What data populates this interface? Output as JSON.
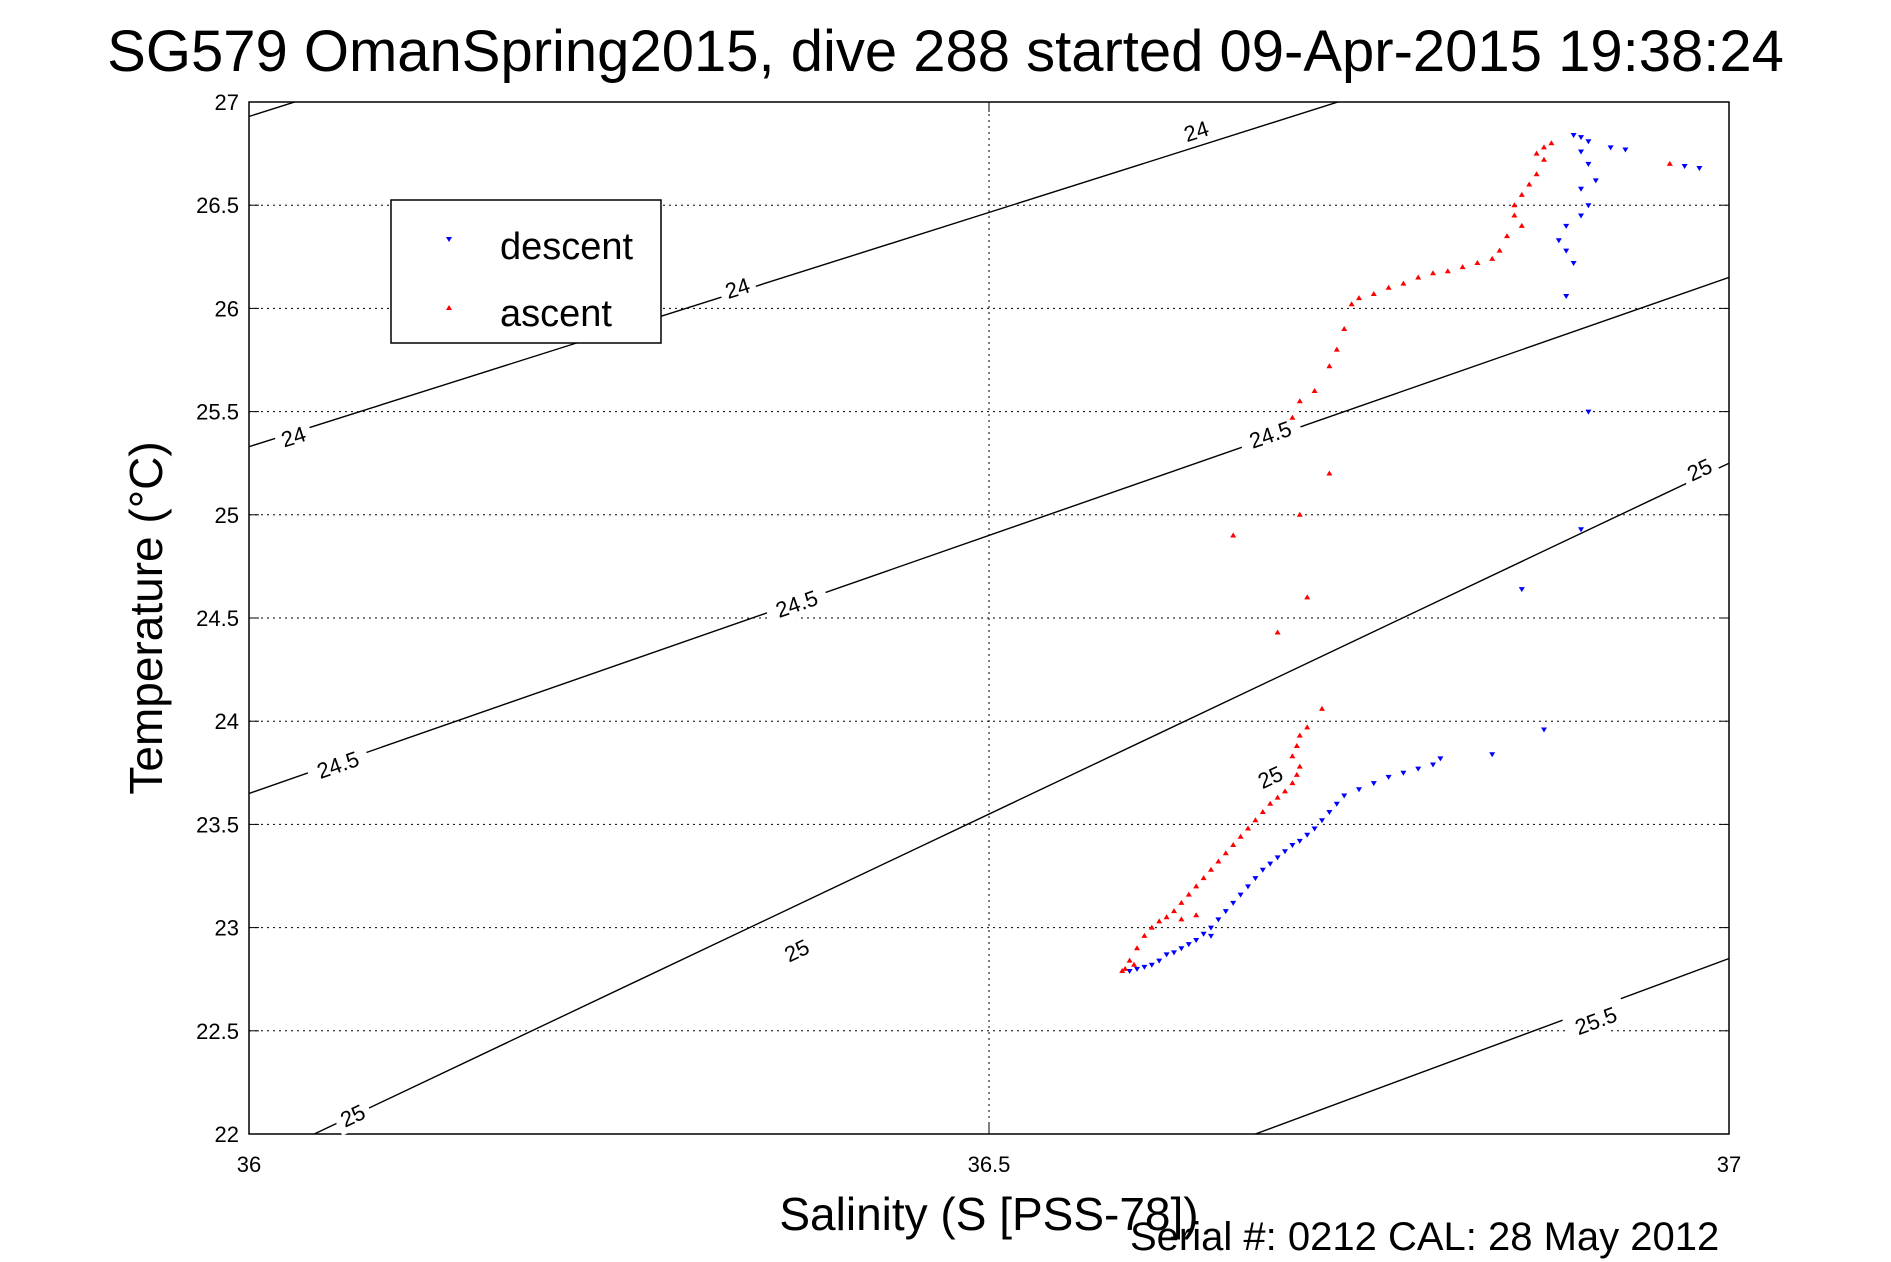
{
  "chart_data": {
    "type": "scatter",
    "title": "SG579 OmanSpring2015, dive 288 started 09-Apr-2015 19:38:24",
    "xlabel": "Salinity (S [PSS-78])",
    "ylabel": "Temperature (°C)",
    "xlim": [
      36,
      37
    ],
    "ylim": [
      22,
      27
    ],
    "x_ticks": [
      "36",
      "36.5",
      "37"
    ],
    "x_tick_values": [
      36,
      36.5,
      37
    ],
    "y_ticks": [
      "22",
      "22.5",
      "23",
      "23.5",
      "24",
      "24.5",
      "25",
      "25.5",
      "26",
      "26.5",
      "27"
    ],
    "y_tick_values": [
      22,
      22.5,
      23,
      23.5,
      24,
      24.5,
      25,
      25.5,
      26,
      26.5,
      27
    ],
    "grid": true,
    "legend_position": "upper-left",
    "footer": "Serial #: 0212  CAL: 28 May 2012",
    "contours": [
      {
        "level": 24,
        "points": [
          [
            36,
            26.93
          ],
          [
            37,
            29.2
          ]
        ],
        "labels": [
          {
            "text": "24",
            "x": 36.03,
            "y": 25.38
          },
          {
            "text": "24",
            "x": 36.33,
            "y": 26.1
          },
          {
            "text": "24",
            "x": 36.64,
            "y": 26.86
          }
        ]
      },
      {
        "level": 24,
        "points": [
          [
            36,
            25.33
          ],
          [
            37,
            27.6
          ]
        ],
        "labels": []
      },
      {
        "level": 24.5,
        "points": [
          [
            36,
            23.65
          ],
          [
            37,
            26.15
          ]
        ],
        "labels": [
          {
            "text": "24.5",
            "x": 36.06,
            "y": 23.79
          },
          {
            "text": "24.5",
            "x": 36.37,
            "y": 24.57
          },
          {
            "text": "24.5",
            "x": 36.69,
            "y": 25.39
          }
        ]
      },
      {
        "level": 25,
        "points": [
          [
            36,
            21.85
          ],
          [
            37,
            25.25
          ]
        ],
        "labels": [
          {
            "text": "25",
            "x": 36.07,
            "y": 22.09
          },
          {
            "text": "25",
            "x": 36.37,
            "y": 22.89
          },
          {
            "text": "25",
            "x": 36.69,
            "y": 23.73
          },
          {
            "text": "25",
            "x": 36.98,
            "y": 25.22
          }
        ]
      },
      {
        "level": 25.5,
        "points": [
          [
            36.68,
            22.0
          ],
          [
            37,
            22.85
          ]
        ],
        "labels": [
          {
            "text": "25.5",
            "x": 36.91,
            "y": 22.55
          }
        ]
      }
    ],
    "series": [
      {
        "name": "descent",
        "color": "#0000ff",
        "marker": "down-triangle",
        "points": [
          [
            36.92,
            26.78
          ],
          [
            36.93,
            26.77
          ],
          [
            36.97,
            26.69
          ],
          [
            36.98,
            26.68
          ],
          [
            36.895,
            26.84
          ],
          [
            36.9,
            26.83
          ],
          [
            36.905,
            26.81
          ],
          [
            36.9,
            26.76
          ],
          [
            36.905,
            26.7
          ],
          [
            36.9,
            26.58
          ],
          [
            36.91,
            26.62
          ],
          [
            36.905,
            26.5
          ],
          [
            36.9,
            26.45
          ],
          [
            36.89,
            26.4
          ],
          [
            36.885,
            26.33
          ],
          [
            36.89,
            26.28
          ],
          [
            36.895,
            26.22
          ],
          [
            36.89,
            26.06
          ],
          [
            36.905,
            25.5
          ],
          [
            36.9,
            24.93
          ],
          [
            36.875,
            23.96
          ],
          [
            36.86,
            24.64
          ],
          [
            36.84,
            23.84
          ],
          [
            36.805,
            23.82
          ],
          [
            36.8,
            23.79
          ],
          [
            36.79,
            23.77
          ],
          [
            36.78,
            23.75
          ],
          [
            36.77,
            23.73
          ],
          [
            36.76,
            23.7
          ],
          [
            36.75,
            23.67
          ],
          [
            36.74,
            23.64
          ],
          [
            36.735,
            23.6
          ],
          [
            36.73,
            23.56
          ],
          [
            36.725,
            23.52
          ],
          [
            36.72,
            23.48
          ],
          [
            36.715,
            23.45
          ],
          [
            36.71,
            23.42
          ],
          [
            36.705,
            23.4
          ],
          [
            36.7,
            23.37
          ],
          [
            36.695,
            23.34
          ],
          [
            36.69,
            23.31
          ],
          [
            36.685,
            23.28
          ],
          [
            36.68,
            23.24
          ],
          [
            36.675,
            23.2
          ],
          [
            36.67,
            23.16
          ],
          [
            36.665,
            23.12
          ],
          [
            36.66,
            23.08
          ],
          [
            36.655,
            23.04
          ],
          [
            36.65,
            23.0
          ],
          [
            36.645,
            22.97
          ],
          [
            36.64,
            22.94
          ],
          [
            36.635,
            22.92
          ],
          [
            36.63,
            22.9
          ],
          [
            36.625,
            22.88
          ],
          [
            36.62,
            22.87
          ],
          [
            36.615,
            22.84
          ],
          [
            36.61,
            22.82
          ],
          [
            36.605,
            22.81
          ],
          [
            36.6,
            22.8
          ],
          [
            36.595,
            22.79
          ],
          [
            36.65,
            22.96
          ]
        ]
      },
      {
        "name": "ascent",
        "color": "#ff0000",
        "marker": "up-triangle",
        "points": [
          [
            36.96,
            26.7
          ],
          [
            36.88,
            26.8
          ],
          [
            36.875,
            26.78
          ],
          [
            36.87,
            26.75
          ],
          [
            36.875,
            26.72
          ],
          [
            36.87,
            26.65
          ],
          [
            36.865,
            26.6
          ],
          [
            36.86,
            26.55
          ],
          [
            36.855,
            26.5
          ],
          [
            36.855,
            26.45
          ],
          [
            36.86,
            26.4
          ],
          [
            36.85,
            26.35
          ],
          [
            36.845,
            26.28
          ],
          [
            36.84,
            26.24
          ],
          [
            36.83,
            26.22
          ],
          [
            36.82,
            26.2
          ],
          [
            36.81,
            26.18
          ],
          [
            36.8,
            26.17
          ],
          [
            36.79,
            26.15
          ],
          [
            36.78,
            26.12
          ],
          [
            36.77,
            26.1
          ],
          [
            36.76,
            26.07
          ],
          [
            36.75,
            26.05
          ],
          [
            36.745,
            26.02
          ],
          [
            36.74,
            25.9
          ],
          [
            36.735,
            25.8
          ],
          [
            36.73,
            25.72
          ],
          [
            36.72,
            25.6
          ],
          [
            36.71,
            25.55
          ],
          [
            36.705,
            25.47
          ],
          [
            36.73,
            25.2
          ],
          [
            36.71,
            25.0
          ],
          [
            36.665,
            24.9
          ],
          [
            36.715,
            24.6
          ],
          [
            36.695,
            24.43
          ],
          [
            36.725,
            24.06
          ],
          [
            36.715,
            23.97
          ],
          [
            36.71,
            23.93
          ],
          [
            36.708,
            23.88
          ],
          [
            36.705,
            23.83
          ],
          [
            36.71,
            23.78
          ],
          [
            36.708,
            23.74
          ],
          [
            36.705,
            23.7
          ],
          [
            36.7,
            23.66
          ],
          [
            36.695,
            23.63
          ],
          [
            36.69,
            23.6
          ],
          [
            36.685,
            23.56
          ],
          [
            36.68,
            23.52
          ],
          [
            36.675,
            23.48
          ],
          [
            36.67,
            23.44
          ],
          [
            36.665,
            23.4
          ],
          [
            36.66,
            23.36
          ],
          [
            36.655,
            23.32
          ],
          [
            36.65,
            23.28
          ],
          [
            36.645,
            23.24
          ],
          [
            36.64,
            23.2
          ],
          [
            36.635,
            23.16
          ],
          [
            36.63,
            23.12
          ],
          [
            36.625,
            23.08
          ],
          [
            36.62,
            23.05
          ],
          [
            36.615,
            23.03
          ],
          [
            36.61,
            23.0
          ],
          [
            36.605,
            22.96
          ],
          [
            36.6,
            22.9
          ],
          [
            36.595,
            22.84
          ],
          [
            36.592,
            22.8
          ],
          [
            36.59,
            22.79
          ],
          [
            36.598,
            22.82
          ],
          [
            36.64,
            23.06
          ],
          [
            36.63,
            23.04
          ]
        ]
      }
    ]
  }
}
